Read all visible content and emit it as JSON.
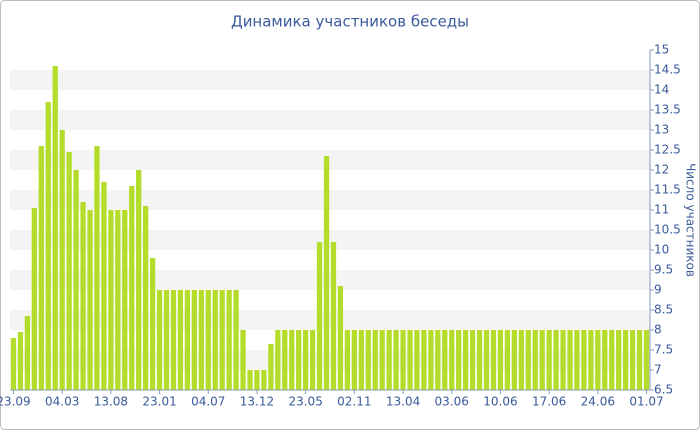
{
  "chart_data": {
    "type": "bar",
    "title": "Динамика участников беседы",
    "y_label": "Число участников",
    "categories": [
      "23.09",
      null,
      null,
      null,
      null,
      null,
      null,
      "04.03",
      null,
      null,
      null,
      null,
      null,
      null,
      "13.08",
      null,
      null,
      null,
      null,
      null,
      null,
      "23.01",
      null,
      null,
      null,
      null,
      null,
      null,
      "04.07",
      null,
      null,
      null,
      null,
      null,
      null,
      "13.12",
      null,
      null,
      null,
      null,
      null,
      null,
      "23.05",
      null,
      null,
      null,
      null,
      null,
      null,
      "02.11",
      null,
      null,
      null,
      null,
      null,
      null,
      "13.04",
      null,
      null,
      null,
      null,
      null,
      null,
      "03.06",
      null,
      null,
      null,
      null,
      null,
      null,
      "10.06",
      null,
      null,
      null,
      null,
      null,
      null,
      "17.06",
      null,
      null,
      null,
      null,
      null,
      null,
      "24.06",
      null,
      null,
      null,
      null,
      null,
      null,
      "01.07"
    ],
    "values": [
      7.8,
      7.95,
      8.35,
      11.05,
      12.6,
      13.7,
      14.6,
      13,
      12.45,
      12,
      11.2,
      11,
      12.6,
      11.7,
      11,
      11,
      11,
      11.6,
      12,
      11.1,
      9.8,
      9,
      9,
      9,
      9,
      9,
      9,
      9,
      9,
      9,
      9,
      9,
      9,
      8,
      7,
      7,
      7,
      7.65,
      8,
      8,
      8,
      8,
      8,
      8,
      10.2,
      12.35,
      10.2,
      9.1,
      8,
      8,
      8,
      8,
      8,
      8,
      8,
      8,
      8,
      8,
      8,
      8,
      8,
      8,
      8,
      8,
      8,
      8,
      8,
      8,
      8,
      8,
      8,
      8,
      8,
      8,
      8,
      8,
      8,
      8,
      8,
      8,
      8,
      8,
      8,
      8,
      8,
      8,
      8,
      8,
      8,
      8,
      8,
      8
    ],
    "color": "#b4dc2a",
    "ylim": [
      6.5,
      15
    ],
    "yticks": [
      6.5,
      7,
      7.5,
      8,
      8.5,
      9,
      9.5,
      10,
      10.5,
      11,
      11.5,
      12,
      12.5,
      13,
      13.5,
      14,
      14.5,
      15
    ],
    "grid": "bands",
    "y_axis_side": "right"
  }
}
